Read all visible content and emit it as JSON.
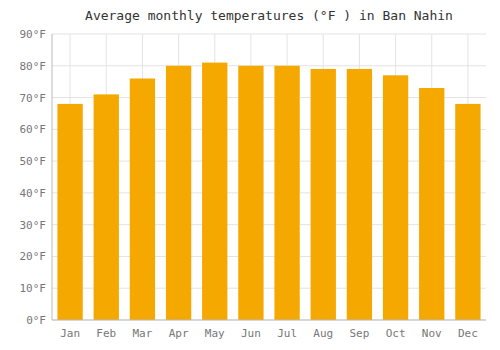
{
  "chart_data": {
    "type": "bar",
    "title": "Average monthly temperatures (°F ) in Ban Nahin",
    "categories": [
      "Jan",
      "Feb",
      "Mar",
      "Apr",
      "May",
      "Jun",
      "Jul",
      "Aug",
      "Sep",
      "Oct",
      "Nov",
      "Dec"
    ],
    "values": [
      68,
      71,
      76,
      80,
      81,
      80,
      80,
      79,
      79,
      77,
      73,
      68
    ],
    "color": "#F5A800",
    "ylim": [
      0,
      90
    ],
    "yticks": [
      {
        "value": 0,
        "label": "0°F"
      },
      {
        "value": 10,
        "label": "10°F"
      },
      {
        "value": 20,
        "label": "20°F"
      },
      {
        "value": 30,
        "label": "30°F"
      },
      {
        "value": 40,
        "label": "40°F"
      },
      {
        "value": 50,
        "label": "50°F"
      },
      {
        "value": 60,
        "label": "60°F"
      },
      {
        "value": 70,
        "label": "70°F"
      },
      {
        "value": 80,
        "label": "80°F"
      },
      {
        "value": 90,
        "label": "90°F"
      }
    ],
    "grid": true
  }
}
